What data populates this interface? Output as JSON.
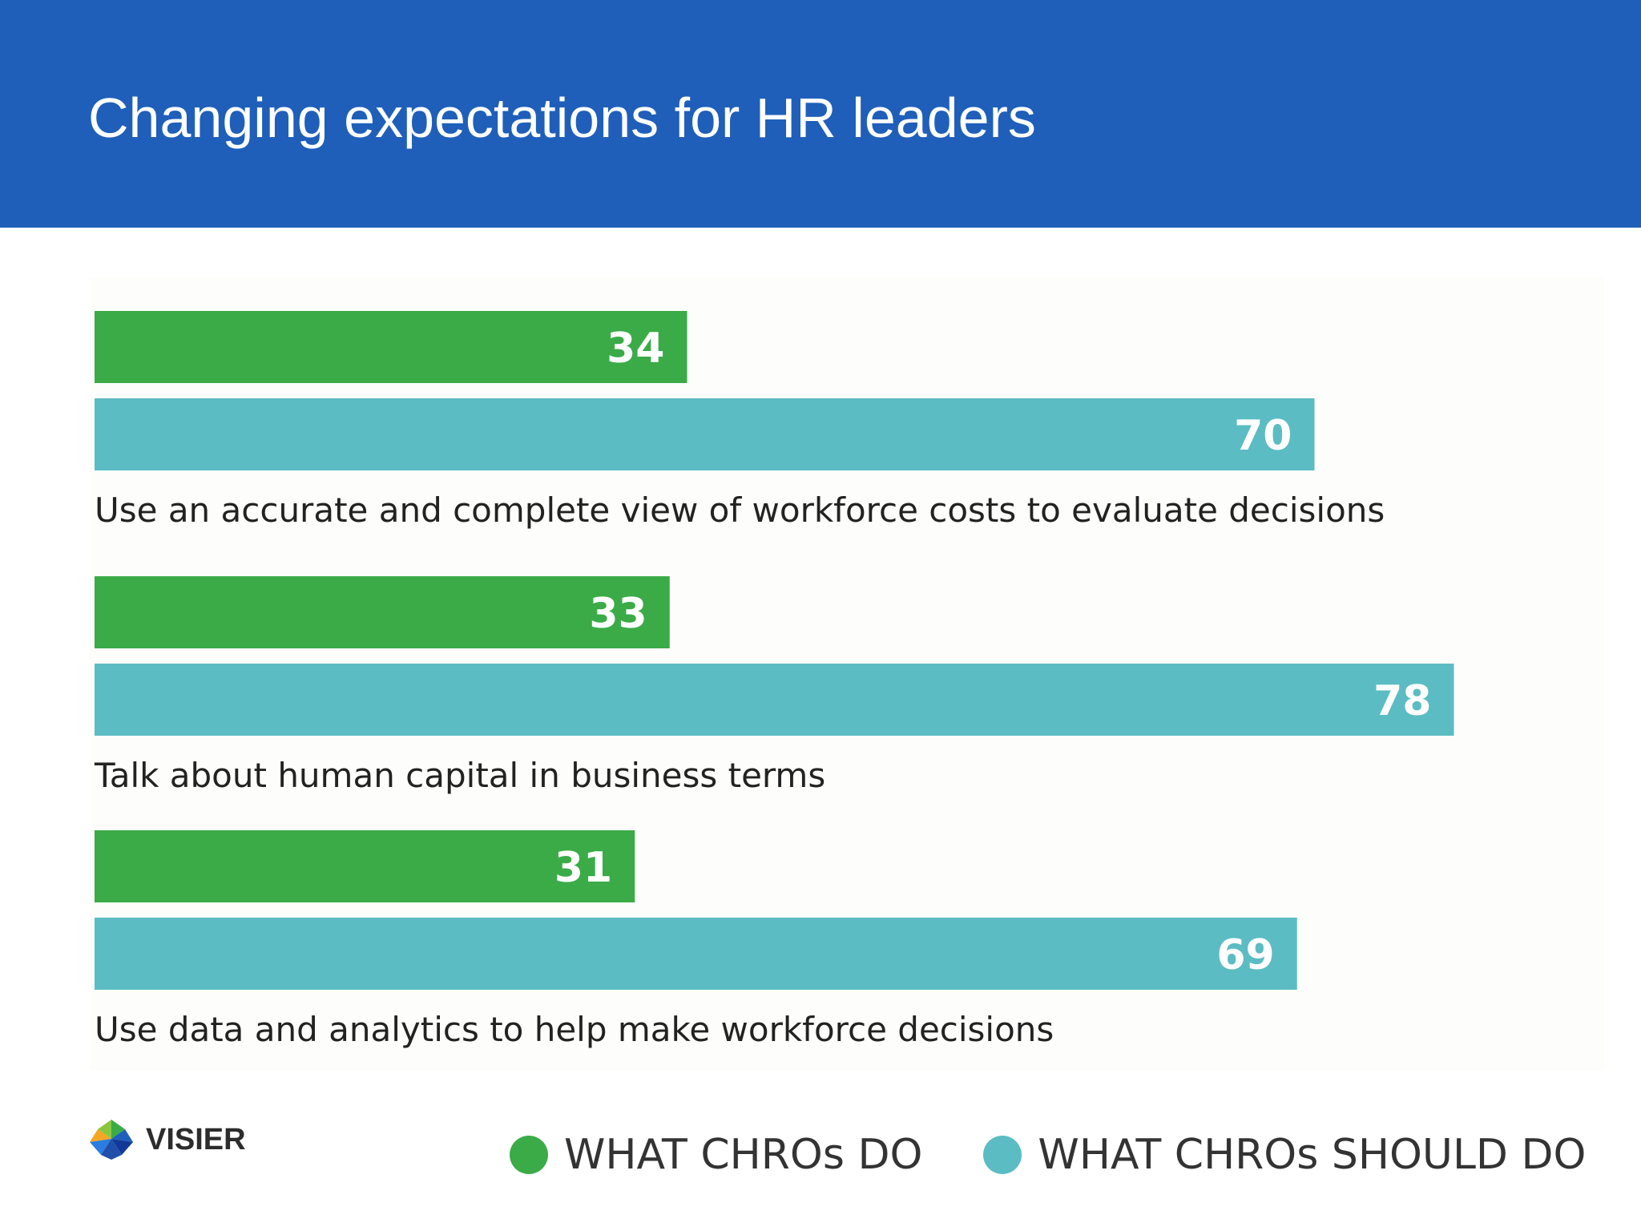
{
  "header": {
    "title": "Changing expectations for HR leaders",
    "background_color": "#1f5fba"
  },
  "logo": {
    "text": "VISIER"
  },
  "legend": [
    {
      "label": "WHAT CHROs DO",
      "color": "#3aab47"
    },
    {
      "label": "WHAT CHROs SHOULD DO",
      "color": "#5cbcc3"
    }
  ],
  "chart_data": {
    "type": "bar",
    "orientation": "horizontal",
    "categories": [
      "Use an accurate and complete view of workforce costs to evaluate decisions",
      "Talk about human capital in business terms",
      "Use data and analytics to help make workforce decisions"
    ],
    "series": [
      {
        "name": "WHAT CHROs DO",
        "color": "#3aab47",
        "values": [
          34,
          33,
          31
        ]
      },
      {
        "name": "WHAT CHROs SHOULD DO",
        "color": "#5cbcc3",
        "values": [
          70,
          78,
          69
        ]
      }
    ],
    "xlim": [
      0,
      100
    ],
    "grid": false,
    "data_labels": true,
    "legend_position": "bottom-right"
  }
}
